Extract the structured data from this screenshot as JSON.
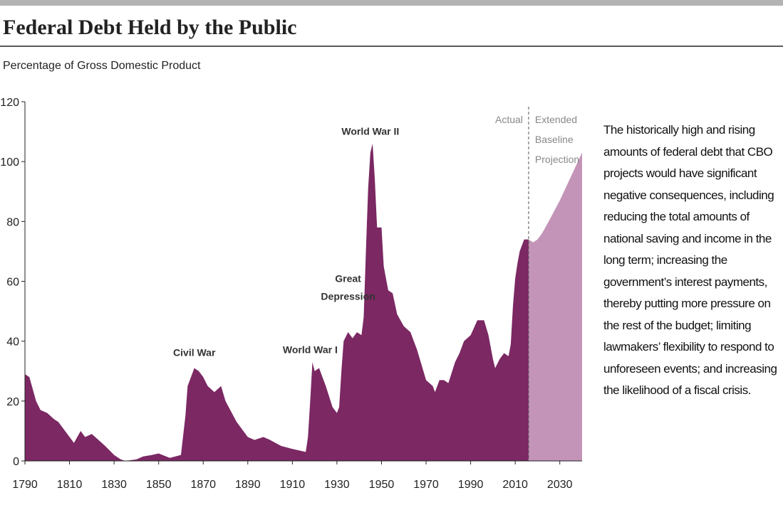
{
  "chart_data": {
    "type": "area",
    "title": "Federal Debt Held by the Public",
    "subtitle": "Percentage of Gross Domestic Product",
    "note": "The historically high and rising amounts of federal debt that CBO projects would have significant negative consequences, including reducing the total amounts of national saving and income in the long term; increasing the government’s interest payments, thereby putting more pressure on the rest of the budget; limiting lawmakers’ flexibility to respond to unforeseen events; and increasing the likelihood of a fiscal crisis.",
    "xlim": [
      1790,
      2040
    ],
    "xticks": [
      1790,
      1810,
      1830,
      1850,
      1870,
      1890,
      1910,
      1930,
      1950,
      1970,
      1990,
      2010,
      2030
    ],
    "ylim": [
      0,
      120
    ],
    "yticks": [
      0,
      20,
      40,
      60,
      80,
      100,
      120
    ],
    "divider": 2016,
    "series": [
      {
        "name": "Actual",
        "color": "#7b2863",
        "x": [
          1790,
          1792,
          1795,
          1797,
          1800,
          1803,
          1805,
          1808,
          1811,
          1812,
          1815,
          1817,
          1820,
          1823,
          1826,
          1830,
          1833,
          1835,
          1840,
          1843,
          1847,
          1850,
          1855,
          1860,
          1862,
          1863,
          1866,
          1868,
          1870,
          1872,
          1875,
          1878,
          1880,
          1885,
          1890,
          1893,
          1897,
          1900,
          1905,
          1910,
          1916,
          1917,
          1918,
          1919,
          1920,
          1922,
          1925,
          1928,
          1930,
          1931,
          1932,
          1933,
          1935,
          1937,
          1939,
          1941,
          1942,
          1943,
          1944,
          1945,
          1946,
          1947,
          1948,
          1950,
          1951,
          1953,
          1955,
          1957,
          1960,
          1963,
          1966,
          1970,
          1973,
          1974,
          1976,
          1978,
          1980,
          1983,
          1985,
          1987,
          1990,
          1993,
          1996,
          1998,
          2000,
          2001,
          2003,
          2005,
          2007,
          2008,
          2009,
          2010,
          2011,
          2012,
          2014,
          2016
        ],
        "values": [
          29,
          28,
          20,
          17,
          16,
          14,
          13,
          10,
          7,
          6,
          10,
          8,
          9,
          7,
          5,
          2,
          0.5,
          0,
          0.5,
          1.5,
          2,
          2.5,
          1,
          2,
          15,
          25,
          31,
          30,
          28,
          25,
          23,
          25,
          20,
          13,
          8,
          7,
          8,
          7,
          5,
          4,
          3,
          8,
          20,
          33,
          30,
          31,
          25,
          18,
          16,
          18,
          30,
          40,
          43,
          41,
          43,
          42,
          48,
          70,
          91,
          103,
          106,
          94,
          78,
          78,
          65,
          57,
          56,
          49,
          45,
          43,
          37,
          27,
          25,
          23,
          27,
          27,
          26,
          33,
          36,
          40,
          42,
          47,
          47,
          42,
          34,
          31,
          34,
          36,
          35,
          39,
          52,
          61,
          66,
          70,
          74,
          74
        ]
      },
      {
        "name": "Extended Baseline Projection",
        "color": "#c394b8",
        "x": [
          2016,
          2018,
          2020,
          2022,
          2025,
          2030,
          2035,
          2040
        ],
        "values": [
          74,
          73,
          74,
          76,
          80,
          87,
          95,
          103
        ]
      }
    ],
    "annotations": [
      {
        "text": "Civil War",
        "x": 1866,
        "y": 35
      },
      {
        "text": "World War I",
        "x": 1918,
        "y": 36
      },
      {
        "text": "Great Depression",
        "x": 1935,
        "y": 55
      },
      {
        "text": "World War II",
        "x": 1945,
        "y": 109
      }
    ]
  }
}
